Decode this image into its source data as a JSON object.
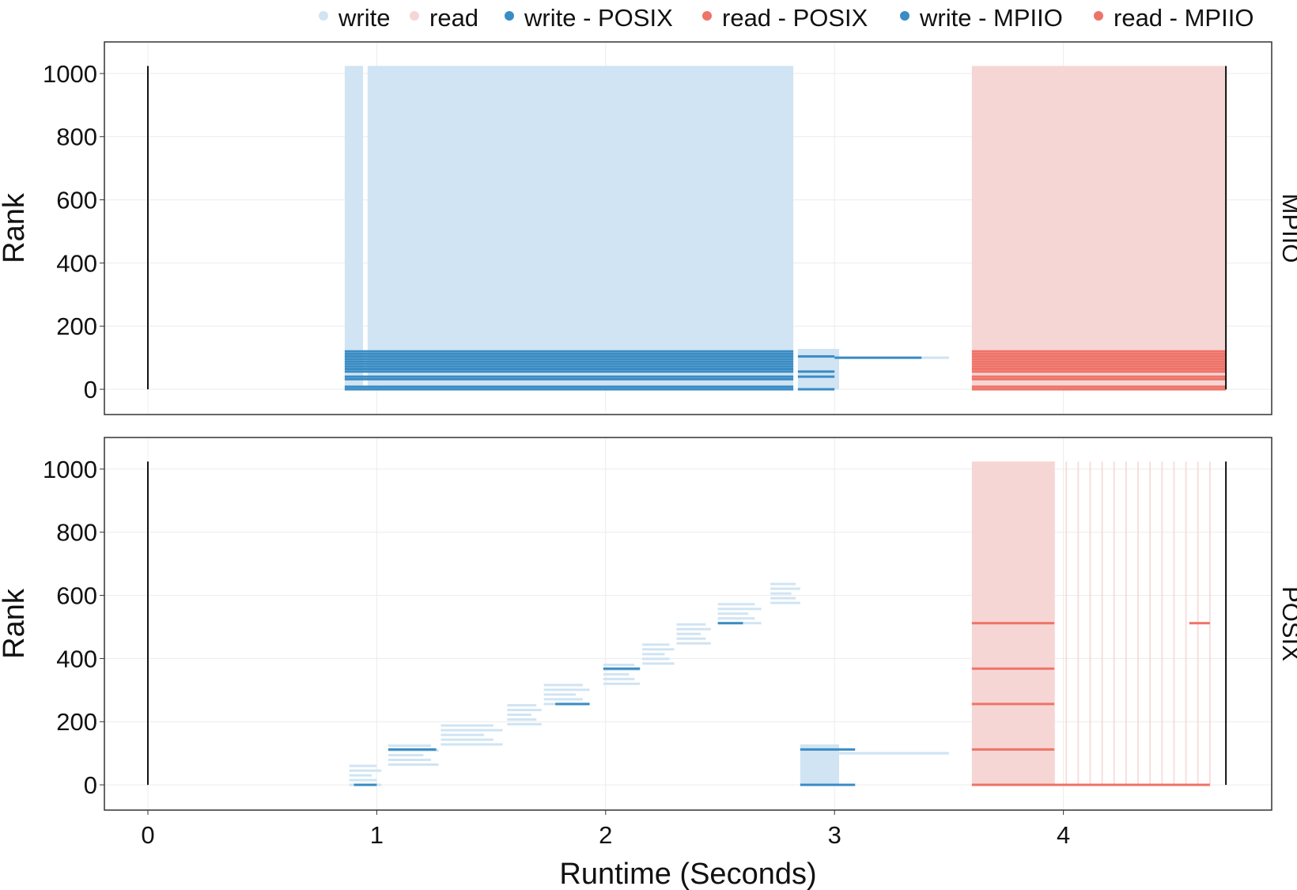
{
  "chart_data": {
    "type": "timeline",
    "xlabel": "Runtime (Seconds)",
    "ylabel": "Rank",
    "xlim": [
      -0.19,
      4.91
    ],
    "ylim": [
      -80,
      1100
    ],
    "x_ticks": [
      0,
      1,
      2,
      3,
      4
    ],
    "y_ticks": [
      0,
      200,
      400,
      600,
      800,
      1000
    ],
    "grid": true,
    "legend_position": "top-right",
    "legend": [
      {
        "label": "write",
        "color": "#d0e4f3"
      },
      {
        "label": "read",
        "color": "#f6d6d4"
      },
      {
        "label": "write - POSIX",
        "color": "#3a8cc4"
      },
      {
        "label": "read - POSIX",
        "color": "#ee7368"
      },
      {
        "label": "write - MPIIO",
        "color": "#3a8cc4"
      },
      {
        "label": "read - MPIIO",
        "color": "#ee7368"
      }
    ],
    "panels": [
      {
        "strip": "MPIIO",
        "start_end_markers": [
          0,
          4.71
        ],
        "segments": [
          {
            "kind": "write",
            "x0": 0.86,
            "x1": 0.94,
            "y0": 0,
            "y1": 1024
          },
          {
            "kind": "write",
            "x0": 0.96,
            "x1": 2.82,
            "y0": 0,
            "y1": 1024
          },
          {
            "kind": "write",
            "x0": 2.84,
            "x1": 3.02,
            "y0": 0,
            "y1": 128
          },
          {
            "kind": "write",
            "x0": 3.0,
            "x1": 3.5,
            "y0": 96,
            "y1": 104
          },
          {
            "kind": "read",
            "x0": 3.6,
            "x1": 4.71,
            "y0": 0,
            "y1": 1024
          },
          {
            "kind": "write-MPIIO",
            "x0": 0.86,
            "x1": 2.82,
            "y_lines": [
              0,
              8,
              32,
              40,
              56,
              64,
              72,
              80,
              88,
              96,
              104,
              112,
              120
            ]
          },
          {
            "kind": "write-MPIIO",
            "x0": 2.84,
            "x1": 3.0,
            "y_lines": [
              0,
              40,
              56,
              104
            ]
          },
          {
            "kind": "write-MPIIO",
            "x0": 3.0,
            "x1": 3.38,
            "y_lines": [
              100
            ]
          },
          {
            "kind": "read-MPIIO",
            "x0": 3.6,
            "x1": 4.71,
            "y_lines": [
              0,
              8,
              32,
              40,
              56,
              64,
              72,
              80,
              88,
              96,
              104,
              112,
              120
            ]
          }
        ]
      },
      {
        "strip": "POSIX",
        "start_end_markers": [
          0,
          4.71
        ],
        "segments": [
          {
            "kind": "write",
            "x0": 0.88,
            "x1": 1.02,
            "y0": 0,
            "y1": 60
          },
          {
            "kind": "write",
            "x0": 1.05,
            "x1": 1.27,
            "y0": 64,
            "y1": 124
          },
          {
            "kind": "write",
            "x0": 1.28,
            "x1": 1.55,
            "y0": 128,
            "y1": 188
          },
          {
            "kind": "write",
            "x0": 1.57,
            "x1": 1.72,
            "y0": 192,
            "y1": 252
          },
          {
            "kind": "write",
            "x0": 1.73,
            "x1": 1.93,
            "y0": 256,
            "y1": 316
          },
          {
            "kind": "write",
            "x0": 1.99,
            "x1": 2.15,
            "y0": 320,
            "y1": 380
          },
          {
            "kind": "write",
            "x0": 2.16,
            "x1": 2.3,
            "y0": 384,
            "y1": 444
          },
          {
            "kind": "write",
            "x0": 2.31,
            "x1": 2.46,
            "y0": 448,
            "y1": 508
          },
          {
            "kind": "write",
            "x0": 2.49,
            "x1": 2.68,
            "y0": 512,
            "y1": 572
          },
          {
            "kind": "write",
            "x0": 2.72,
            "x1": 2.85,
            "y0": 576,
            "y1": 636
          },
          {
            "kind": "write",
            "x0": 2.85,
            "x1": 3.02,
            "y0": 0,
            "y1": 128
          },
          {
            "kind": "write",
            "x0": 3.0,
            "x1": 3.5,
            "y0": 96,
            "y1": 104
          },
          {
            "kind": "read",
            "x0": 3.6,
            "x1": 3.96,
            "y0": 0,
            "y1": 1024
          },
          {
            "kind": "read",
            "x0": 3.96,
            "x1": 4.64,
            "y0": 0,
            "y1": 1024,
            "sparse": true
          },
          {
            "kind": "write-POSIX",
            "x0": 0.9,
            "x1": 1.0,
            "y_lines": [
              0
            ]
          },
          {
            "kind": "write-POSIX",
            "x0": 1.05,
            "x1": 1.26,
            "y_lines": [
              112
            ]
          },
          {
            "kind": "write-POSIX",
            "x0": 1.78,
            "x1": 1.93,
            "y_lines": [
              256
            ]
          },
          {
            "kind": "write-POSIX",
            "x0": 1.99,
            "x1": 2.15,
            "y_lines": [
              368
            ]
          },
          {
            "kind": "write-POSIX",
            "x0": 2.49,
            "x1": 2.6,
            "y_lines": [
              512
            ]
          },
          {
            "kind": "write-POSIX",
            "x0": 2.85,
            "x1": 3.09,
            "y_lines": [
              0,
              112
            ]
          },
          {
            "kind": "read-POSIX",
            "x0": 3.6,
            "x1": 4.64,
            "y_lines": [
              0
            ]
          },
          {
            "kind": "read-POSIX",
            "x0": 3.6,
            "x1": 3.96,
            "y_lines": [
              112,
              256,
              368,
              512
            ]
          },
          {
            "kind": "read-POSIX",
            "x0": 4.55,
            "x1": 4.64,
            "y_lines": [
              512
            ]
          }
        ]
      }
    ]
  }
}
